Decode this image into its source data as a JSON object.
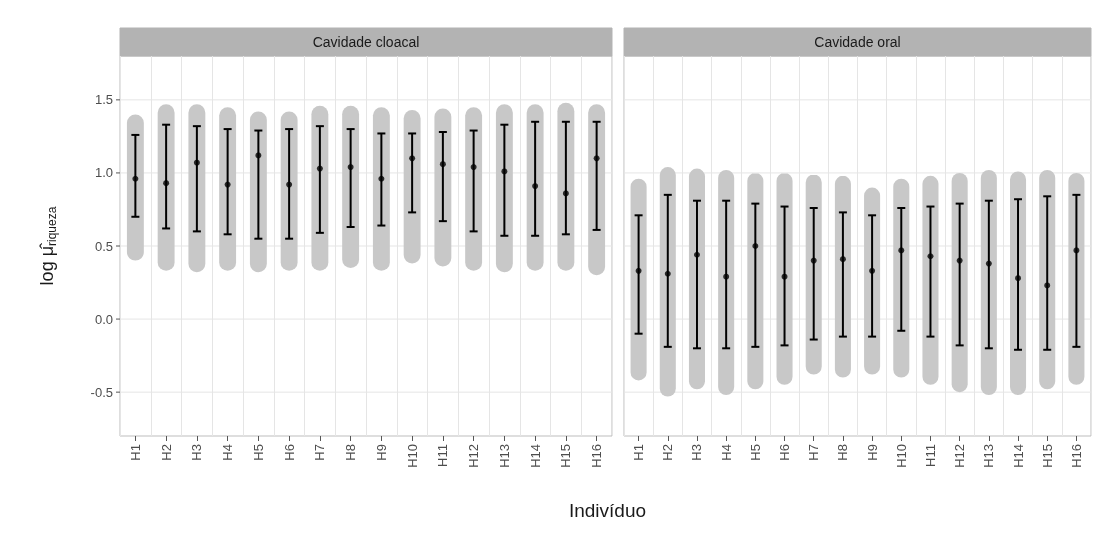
{
  "chart_data": [
    {
      "type": "scatter",
      "title": "Cavidade cloacal",
      "ylabel": "log μ̂$_{riqueza}$",
      "xlabel": "Indivíduo",
      "categories": [
        "H1",
        "H2",
        "H3",
        "H4",
        "H5",
        "H6",
        "H7",
        "H8",
        "H9",
        "H10",
        "H11",
        "H12",
        "H13",
        "H14",
        "H15",
        "H16"
      ],
      "ylim": [
        -0.8,
        1.8
      ],
      "yticks": [
        -0.5,
        {
          "value": 0,
          "label": "0.0"
        },
        0.5,
        {
          "value": 1,
          "label": "1.0"
        },
        1.5
      ],
      "grid": true,
      "series": [
        {
          "type": "bar",
          "color": "#c8c8c8",
          "base": [
            0.4,
            0.33,
            0.32,
            0.33,
            0.32,
            0.33,
            0.33,
            0.35,
            0.33,
            0.38,
            0.36,
            0.33,
            0.32,
            0.33,
            0.33,
            0.3
          ],
          "values": [
            1.0,
            1.14,
            1.15,
            1.12,
            1.1,
            1.09,
            1.13,
            1.11,
            1.12,
            1.05,
            1.08,
            1.12,
            1.15,
            1.14,
            1.15,
            1.17
          ]
        },
        {
          "color": "#000000",
          "values": [
            0.96,
            0.93,
            1.07,
            0.92,
            1.12,
            0.92,
            1.03,
            1.04,
            0.96,
            1.1,
            1.06,
            1.04,
            1.01,
            0.91,
            0.86,
            1.1
          ],
          "errors": [
            [
              0.7,
              1.26
            ],
            [
              0.62,
              1.33
            ],
            [
              0.6,
              1.32
            ],
            [
              0.58,
              1.3
            ],
            [
              0.55,
              1.29
            ],
            [
              0.55,
              1.3
            ],
            [
              0.59,
              1.32
            ],
            [
              0.63,
              1.3
            ],
            [
              0.64,
              1.27
            ],
            [
              0.73,
              1.27
            ],
            [
              0.67,
              1.28
            ],
            [
              0.6,
              1.29
            ],
            [
              0.57,
              1.33
            ],
            [
              0.57,
              1.35
            ],
            [
              0.58,
              1.35
            ],
            [
              0.61,
              1.35
            ]
          ]
        }
      ]
    },
    {
      "type": "scatter",
      "title": "Cavidade oral",
      "tick_labels": "x",
      "categories": [
        "H1",
        "H2",
        "H3",
        "H4",
        "H5",
        "H6",
        "H7",
        "H8",
        "H9",
        "H10",
        "H11",
        "H12",
        "H13",
        "H14",
        "H15",
        "H16"
      ],
      "ylim": [
        -0.8,
        1.8
      ],
      "yticks": [
        -0.5,
        0,
        0.5,
        1,
        1.5
      ],
      "grid": true,
      "series": [
        {
          "type": "bar",
          "color": "#c8c8c8",
          "base": [
            -0.42,
            -0.53,
            -0.48,
            -0.52,
            -0.48,
            -0.45,
            -0.38,
            -0.4,
            -0.38,
            -0.4,
            -0.45,
            -0.5,
            -0.52,
            -0.52,
            -0.48,
            -0.45
          ],
          "values": [
            1.38,
            1.57,
            1.51,
            1.54,
            1.48,
            1.45,
            1.37,
            1.38,
            1.28,
            1.36,
            1.43,
            1.5,
            1.54,
            1.53,
            1.5,
            1.45
          ]
        },
        {
          "color": "#000000",
          "values": [
            0.33,
            0.31,
            0.44,
            0.29,
            0.5,
            0.29,
            0.4,
            0.41,
            0.33,
            0.47,
            0.43,
            0.4,
            0.38,
            0.28,
            0.23,
            0.47
          ],
          "errors": [
            [
              -0.1,
              0.71
            ],
            [
              -0.19,
              0.85
            ],
            [
              -0.2,
              0.81
            ],
            [
              -0.2,
              0.81
            ],
            [
              -0.19,
              0.79
            ],
            [
              -0.18,
              0.77
            ],
            [
              -0.14,
              0.76
            ],
            [
              -0.12,
              0.73
            ],
            [
              -0.12,
              0.71
            ],
            [
              -0.08,
              0.76
            ],
            [
              -0.12,
              0.77
            ],
            [
              -0.18,
              0.79
            ],
            [
              -0.2,
              0.81
            ],
            [
              -0.21,
              0.82
            ],
            [
              -0.21,
              0.84
            ],
            [
              -0.19,
              0.85
            ]
          ]
        }
      ]
    }
  ]
}
